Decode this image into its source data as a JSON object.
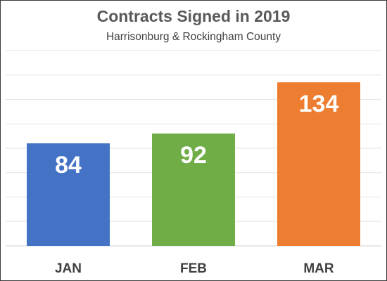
{
  "chart_data": {
    "type": "bar",
    "title": "Contracts Signed in 2019",
    "subtitle": "Harrisonburg & Rockingham County",
    "categories": [
      "JAN",
      "FEB",
      "MAR"
    ],
    "values": [
      84,
      92,
      134
    ],
    "colors": [
      "#4472c4",
      "#70ad47",
      "#ed7d31"
    ],
    "ylim": [
      0,
      160
    ],
    "grid": true,
    "data_labels": true,
    "xlabel": "",
    "ylabel": ""
  }
}
